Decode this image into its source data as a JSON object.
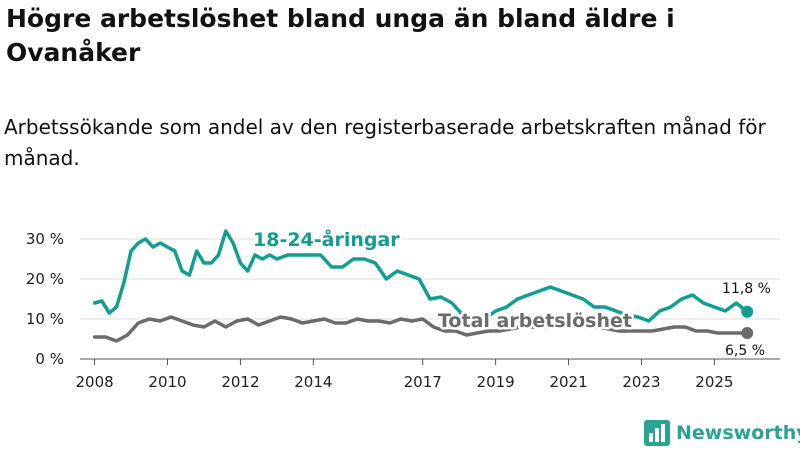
{
  "colors": {
    "youth": "#0f9e8f",
    "total": "#6b6b6b",
    "grid": "#dddddd",
    "brand": "#2aa391"
  },
  "brand": {
    "name": "Newsworthy",
    "icon": "bar-chart-icon"
  },
  "chart_data": {
    "type": "line",
    "title": "Högre arbetslöshet bland unga än bland äldre i Ovanåker",
    "subtitle": "Arbetssökande som andel av den registerbaserade arbetskraften månad för månad.",
    "xlabel": "",
    "ylabel": "",
    "ylim": [
      0,
      35
    ],
    "xlim": [
      2007.6,
      2026.8
    ],
    "yticks": [
      0,
      10,
      20,
      30
    ],
    "ytick_labels": [
      "0 %",
      "10 %",
      "20 %",
      "30 %"
    ],
    "xticks": [
      2008,
      2010,
      2012,
      2014,
      2017,
      2019,
      2021,
      2023,
      2025
    ],
    "xtick_labels": [
      "2008",
      "2010",
      "2012",
      "2014",
      "2017",
      "2019",
      "2021",
      "2023",
      "2025"
    ],
    "grid": true,
    "legend": "inline",
    "series": [
      {
        "name": "18-24-åringar",
        "label": "18-24-åringar",
        "color": "#0f9e8f",
        "end_label": "11,8 %",
        "x": [
          2008.0,
          2008.2,
          2008.4,
          2008.6,
          2008.8,
          2009.0,
          2009.2,
          2009.4,
          2009.6,
          2009.8,
          2010.0,
          2010.2,
          2010.4,
          2010.6,
          2010.8,
          2011.0,
          2011.2,
          2011.4,
          2011.6,
          2011.8,
          2012.0,
          2012.2,
          2012.4,
          2012.6,
          2012.8,
          2013.0,
          2013.3,
          2013.6,
          2013.9,
          2014.2,
          2014.5,
          2014.8,
          2015.1,
          2015.4,
          2015.7,
          2016.0,
          2016.3,
          2016.6,
          2016.9,
          2017.2,
          2017.5,
          2017.8,
          2018.1,
          2018.4,
          2018.7,
          2019.0,
          2019.3,
          2019.6,
          2019.9,
          2020.2,
          2020.5,
          2020.8,
          2021.1,
          2021.4,
          2021.7,
          2022.0,
          2022.3,
          2022.6,
          2022.9,
          2023.2,
          2023.5,
          2023.8,
          2024.1,
          2024.4,
          2024.7,
          2025.0,
          2025.3,
          2025.6,
          2025.9
        ],
        "values": [
          14,
          14.5,
          11.5,
          13,
          19,
          27,
          29,
          30,
          28,
          29,
          28,
          27,
          22,
          21,
          27,
          24,
          24,
          26,
          32,
          29,
          24,
          22,
          26,
          25,
          26,
          25,
          26,
          26,
          26,
          26,
          23,
          23,
          25,
          25,
          24,
          20,
          22,
          21,
          20,
          15,
          15.5,
          14,
          11,
          9,
          10,
          12,
          13,
          15,
          16,
          17,
          18,
          17,
          16,
          15,
          13,
          13,
          12,
          11,
          10.5,
          9.5,
          12,
          13,
          15,
          16,
          14,
          13,
          12,
          14,
          11.8
        ]
      },
      {
        "name": "Total arbetslöshet",
        "label": "Total arbetslöshet",
        "color": "#6b6b6b",
        "end_label": "6,5 %",
        "x": [
          2008.0,
          2008.3,
          2008.6,
          2008.9,
          2009.2,
          2009.5,
          2009.8,
          2010.1,
          2010.4,
          2010.7,
          2011.0,
          2011.3,
          2011.6,
          2011.9,
          2012.2,
          2012.5,
          2012.8,
          2013.1,
          2013.4,
          2013.7,
          2014.0,
          2014.3,
          2014.6,
          2014.9,
          2015.2,
          2015.5,
          2015.8,
          2016.1,
          2016.4,
          2016.7,
          2017.0,
          2017.3,
          2017.6,
          2017.9,
          2018.2,
          2018.5,
          2018.8,
          2019.1,
          2019.4,
          2019.7,
          2020.0,
          2020.3,
          2020.6,
          2020.9,
          2021.2,
          2021.5,
          2021.8,
          2022.1,
          2022.4,
          2022.7,
          2023.0,
          2023.3,
          2023.6,
          2023.9,
          2024.2,
          2024.5,
          2024.8,
          2025.1,
          2025.4,
          2025.7,
          2025.9
        ],
        "values": [
          5.5,
          5.5,
          4.5,
          6,
          9,
          10,
          9.5,
          10.5,
          9.5,
          8.5,
          8,
          9.5,
          8,
          9.5,
          10,
          8.5,
          9.5,
          10.5,
          10,
          9,
          9.5,
          10,
          9,
          9,
          10,
          9.5,
          9.5,
          9,
          10,
          9.5,
          10,
          8,
          7,
          7,
          6,
          6.5,
          7,
          7,
          7.5,
          8,
          8,
          8,
          8.5,
          9,
          8.5,
          8,
          8,
          7.5,
          7,
          7,
          7,
          7,
          7.5,
          8,
          8,
          7,
          7,
          6.5,
          6.5,
          6.5,
          6.5
        ]
      }
    ]
  }
}
